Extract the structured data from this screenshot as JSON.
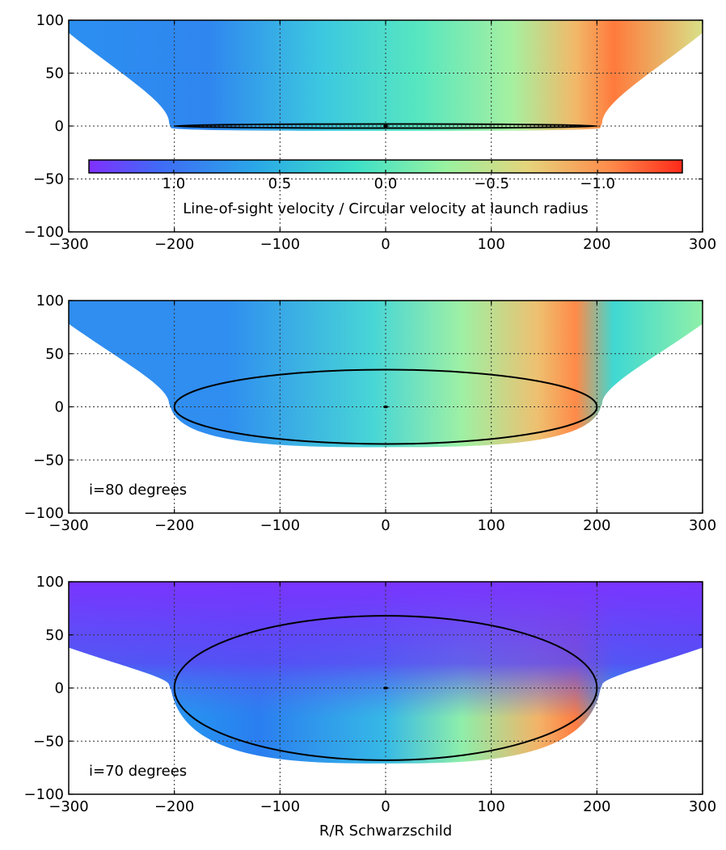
{
  "chart_data": [
    {
      "type": "heatmap",
      "panel": "top",
      "xlim": [
        -300,
        300
      ],
      "ylim": [
        -100,
        100
      ],
      "xticks": [
        -300,
        -200,
        -100,
        0,
        100,
        200,
        300
      ],
      "yticks": [
        -100,
        -50,
        0,
        50,
        100
      ],
      "xtick_labels": [
        "−300",
        "−200",
        "−100",
        "0",
        "100",
        "200",
        "300"
      ],
      "ytick_labels": [
        "−100",
        "−50",
        "0",
        "50",
        "100"
      ],
      "grid": true,
      "annotation": "",
      "ellipse": {
        "center": [
          0,
          0
        ],
        "semi_x": 200,
        "semi_y": 1.5
      },
      "colorbar": {
        "ticks": [
          1.0,
          0.5,
          0.0,
          -0.5,
          -1.0
        ],
        "tick_labels": [
          "1.0",
          "0.5",
          "0.0",
          "−0.5",
          "−1.0"
        ],
        "label": "Line-of-sight velocity / Circular velocity at launch radius",
        "cmap": "rainbow",
        "range": [
          1.4,
          -1.4
        ]
      }
    },
    {
      "type": "heatmap",
      "panel": "middle",
      "xlim": [
        -300,
        300
      ],
      "ylim": [
        -100,
        100
      ],
      "xticks": [
        -300,
        -200,
        -100,
        0,
        100,
        200,
        300
      ],
      "yticks": [
        -100,
        -50,
        0,
        50,
        100
      ],
      "xtick_labels": [
        "−300",
        "−200",
        "−100",
        "0",
        "100",
        "200",
        "300"
      ],
      "ytick_labels": [
        "−100",
        "−50",
        "0",
        "50",
        "100"
      ],
      "grid": true,
      "annotation": "i=80 degrees",
      "ellipse": {
        "center": [
          0,
          0
        ],
        "semi_x": 200,
        "semi_y": 35
      }
    },
    {
      "type": "heatmap",
      "panel": "bottom",
      "xlim": [
        -300,
        300
      ],
      "ylim": [
        -100,
        100
      ],
      "xticks": [
        -300,
        -200,
        -100,
        0,
        100,
        200,
        300
      ],
      "yticks": [
        -100,
        -50,
        0,
        50,
        100
      ],
      "xtick_labels": [
        "−300",
        "−200",
        "−100",
        "0",
        "100",
        "200",
        "300"
      ],
      "ytick_labels": [
        "−100",
        "−50",
        "0",
        "50",
        "100"
      ],
      "grid": true,
      "annotation": "i=70 degrees",
      "xlabel": "R/R  Schwarzschild",
      "ellipse": {
        "center": [
          0,
          0
        ],
        "semi_x": 200,
        "semi_y": 68
      }
    }
  ]
}
